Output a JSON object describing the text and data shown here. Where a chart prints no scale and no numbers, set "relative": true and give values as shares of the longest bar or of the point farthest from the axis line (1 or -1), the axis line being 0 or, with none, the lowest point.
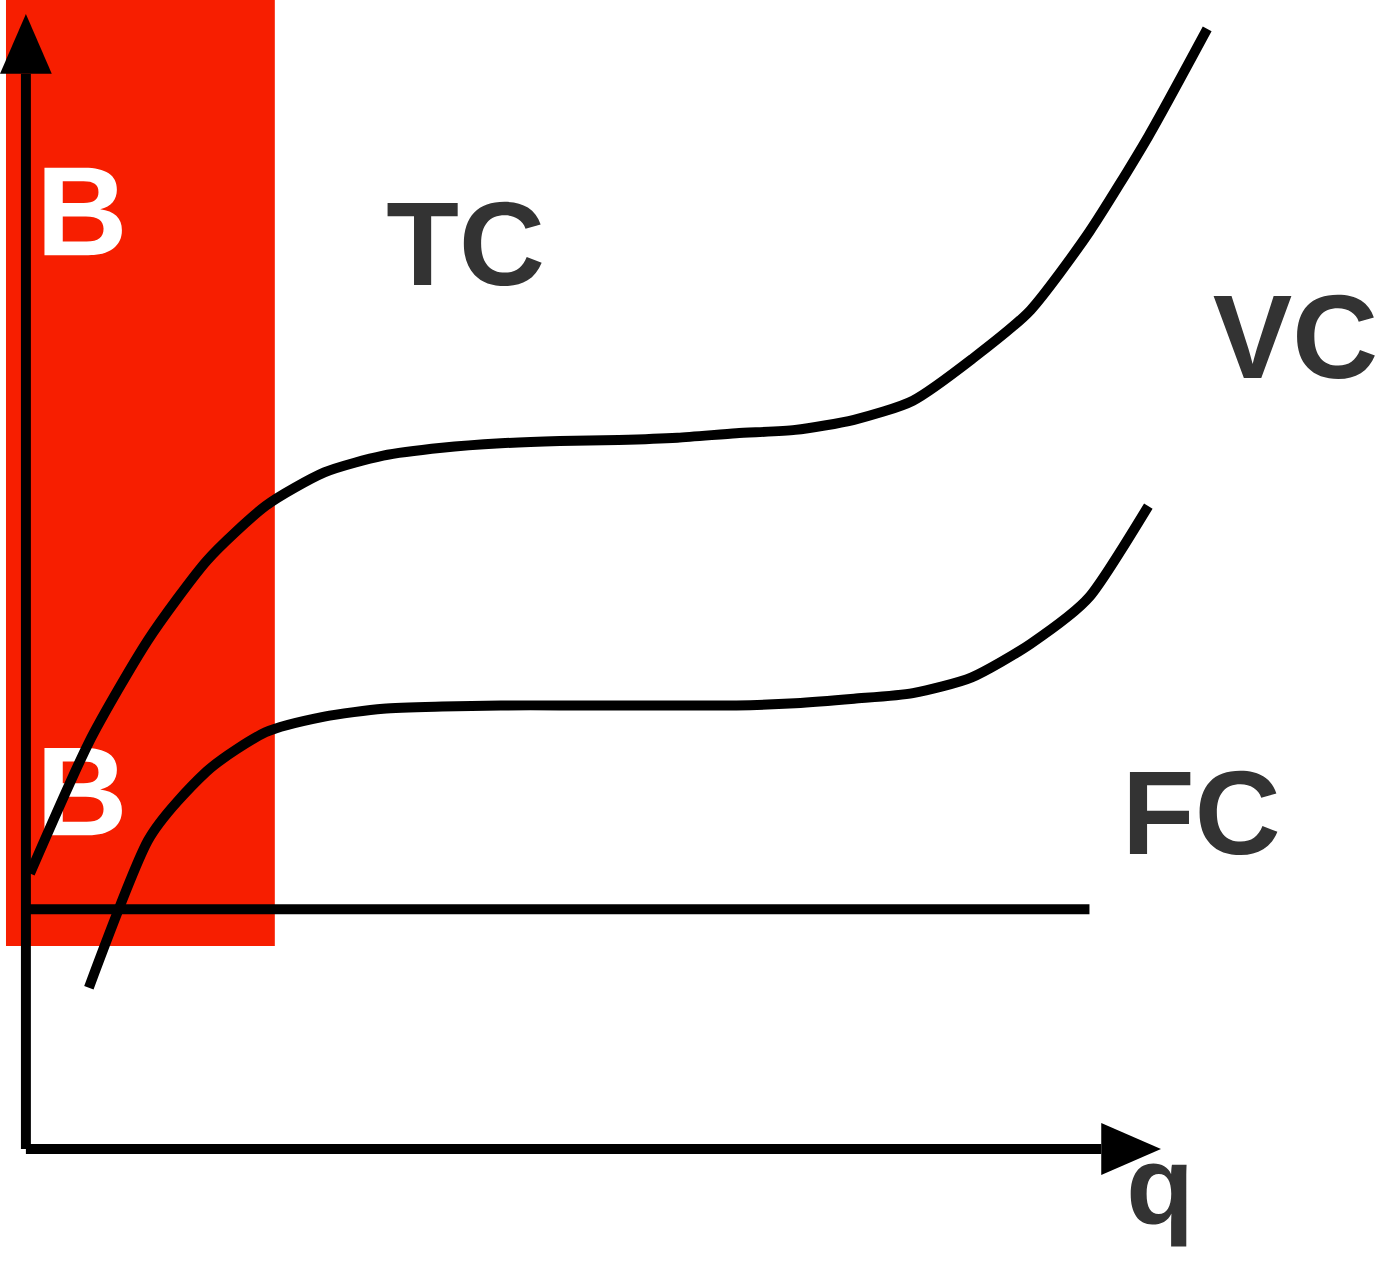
{
  "chart_data": {
    "type": "line",
    "relative": true,
    "xlabel": "q",
    "categories": [
      null,
      null,
      null,
      null,
      null,
      null,
      null,
      null,
      null,
      null,
      null,
      null,
      null,
      null,
      null,
      null,
      null,
      null,
      null,
      null,
      null
    ],
    "series": [
      {
        "name": "TC",
        "color": "#000000",
        "values": [
          0.246,
          0.363,
          0.454,
          0.525,
          0.574,
          0.604,
          0.619,
          0.626,
          0.63,
          0.632,
          0.633,
          0.635,
          0.639,
          0.642,
          0.651,
          0.668,
          0.705,
          0.749,
          0.819,
          0.904,
          1
        ]
      },
      {
        "name": "VC",
        "color": "#000000",
        "values": [
          null,
          0.144,
          0.275,
          0.337,
          0.372,
          0.386,
          0.393,
          0.395,
          0.396,
          0.396,
          0.396,
          0.396,
          0.396,
          0.398,
          0.402,
          0.407,
          0.421,
          0.451,
          0.493,
          0.574,
          null
        ]
      },
      {
        "name": "FC",
        "color": "#000000",
        "values": [
          0.214,
          0.214,
          0.214,
          0.214,
          0.214,
          0.214,
          0.214,
          0.214,
          0.214,
          0.214,
          0.214,
          0.214,
          0.214,
          0.214,
          0.214,
          0.214,
          0.214,
          0.214,
          0.214,
          null,
          null
        ]
      }
    ],
    "annotations": [
      "B",
      "B"
    ]
  }
}
